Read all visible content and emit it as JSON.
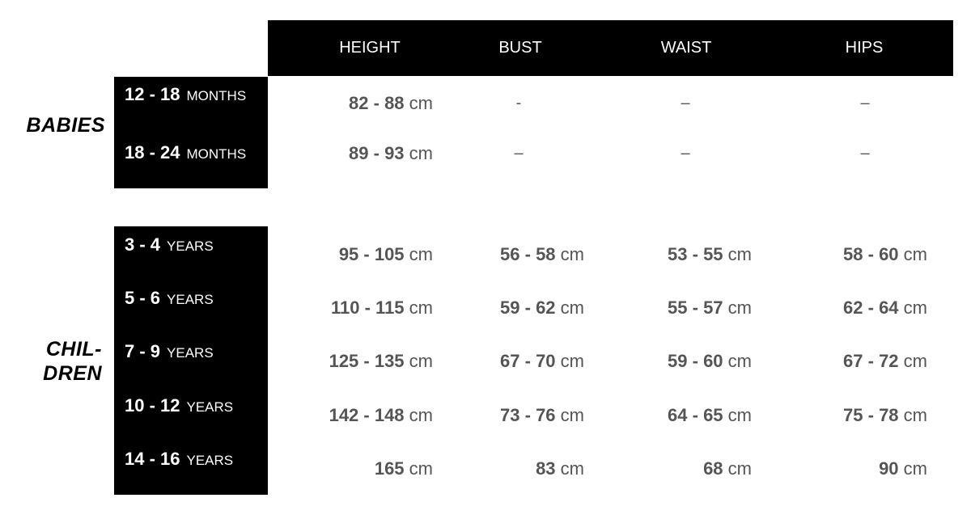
{
  "headers": [
    "HEIGHT",
    "BUST",
    "WAIST",
    "HIPS"
  ],
  "unit": "cm",
  "babies": {
    "group_label": "BABIES",
    "rows": [
      {
        "range": "12 - 18",
        "period": "MONTHS",
        "height": "82 - 88",
        "bust": "-",
        "waist": "–",
        "hips": "–"
      },
      {
        "range": "18 - 24",
        "period": "MONTHS",
        "height": "89 - 93",
        "bust": "–",
        "waist": "–",
        "hips": "–"
      }
    ]
  },
  "children": {
    "group_label_line1": "CHIL-",
    "group_label_line2": "DREN",
    "rows": [
      {
        "range": "3 - 4",
        "period": "YEARS",
        "height": "95 - 105",
        "bust": "56 - 58",
        "waist": "53 - 55",
        "hips": "58 - 60"
      },
      {
        "range": "5 - 6",
        "period": "YEARS",
        "height": "110 - 115",
        "bust": "59 - 62",
        "waist": "55 - 57",
        "hips": "62 - 64"
      },
      {
        "range": "7 - 9",
        "period": "YEARS",
        "height": "125 - 135",
        "bust": "67 - 70",
        "waist": "59 - 60",
        "hips": "67 - 72"
      },
      {
        "range": "10 - 12",
        "period": "YEARS",
        "height": "142 - 148",
        "bust": "73 - 76",
        "waist": "64 - 65",
        "hips": "75 - 78"
      },
      {
        "range": "14 - 16",
        "period": "YEARS",
        "height": "165",
        "bust": "83",
        "waist": "68",
        "hips": "90"
      }
    ]
  }
}
